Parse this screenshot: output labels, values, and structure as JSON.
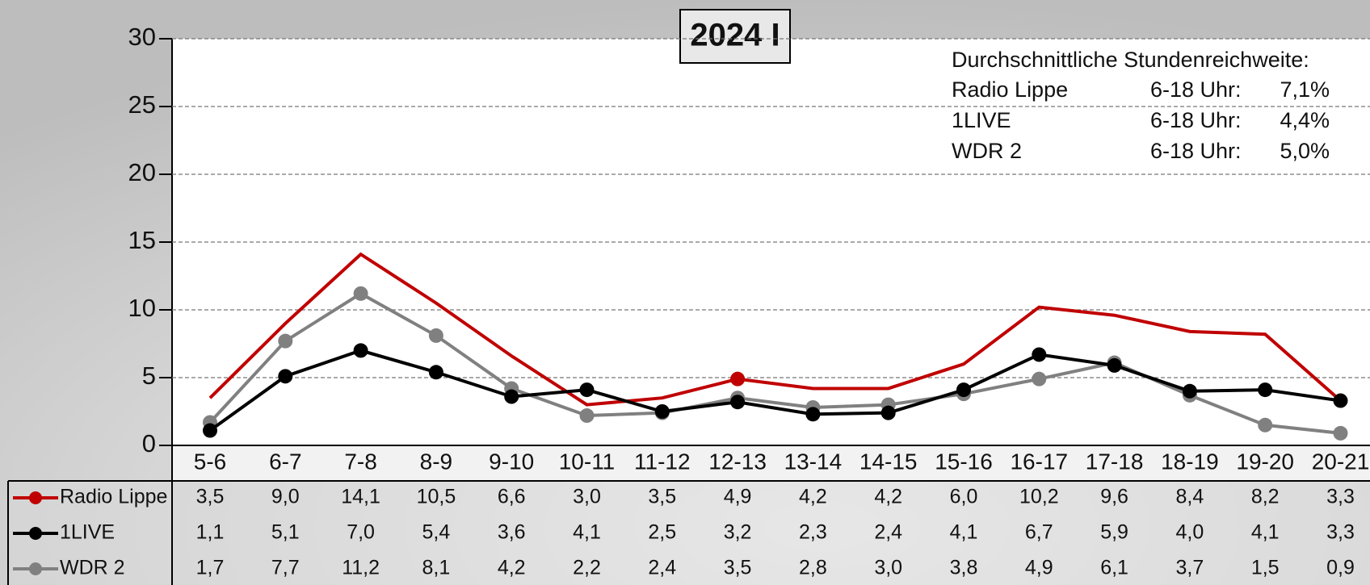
{
  "chart_data": {
    "type": "line",
    "title": "2024 I",
    "categories": [
      "5-6",
      "6-7",
      "7-8",
      "8-9",
      "9-10",
      "10-11",
      "11-12",
      "12-13",
      "13-14",
      "14-15",
      "15-16",
      "16-17",
      "17-18",
      "18-19",
      "19-20",
      "20-21"
    ],
    "series": [
      {
        "name": "Radio Lippe",
        "color": "#c00000",
        "markers": false,
        "highlight": 7,
        "values": [
          3.5,
          9.0,
          14.1,
          10.5,
          6.6,
          3.0,
          3.5,
          4.9,
          4.2,
          4.2,
          6.0,
          10.2,
          9.6,
          8.4,
          8.2,
          3.3
        ],
        "value_labels": [
          "3,5",
          "9,0",
          "14,1",
          "10,5",
          "6,6",
          "3,0",
          "3,5",
          "4,9",
          "4,2",
          "4,2",
          "6,0",
          "10,2",
          "9,6",
          "8,4",
          "8,2",
          "3,3"
        ]
      },
      {
        "name": "1LIVE",
        "color": "#000000",
        "markers": true,
        "values": [
          1.1,
          5.1,
          7.0,
          5.4,
          3.6,
          4.1,
          2.5,
          3.2,
          2.3,
          2.4,
          4.1,
          6.7,
          5.9,
          4.0,
          4.1,
          3.3
        ],
        "value_labels": [
          "1,1",
          "5,1",
          "7,0",
          "5,4",
          "3,6",
          "4,1",
          "2,5",
          "3,2",
          "2,3",
          "2,4",
          "4,1",
          "6,7",
          "5,9",
          "4,0",
          "4,1",
          "3,3"
        ]
      },
      {
        "name": "WDR 2",
        "color": "#808080",
        "markers": true,
        "values": [
          1.7,
          7.7,
          11.2,
          8.1,
          4.2,
          2.2,
          2.4,
          3.5,
          2.8,
          3.0,
          3.8,
          4.9,
          6.1,
          3.7,
          1.5,
          0.9
        ],
        "value_labels": [
          "1,7",
          "7,7",
          "11,2",
          "8,1",
          "4,2",
          "2,2",
          "2,4",
          "3,5",
          "2,8",
          "3,0",
          "3,8",
          "4,9",
          "6,1",
          "3,7",
          "1,5",
          "0,9"
        ]
      }
    ],
    "ylim": [
      0,
      30
    ],
    "yticks": [
      0,
      5,
      10,
      15,
      20,
      25,
      30
    ],
    "grid": true,
    "annotation": {
      "heading": "Durchschnittliche Stundenreichweite:",
      "rows": [
        [
          "Radio Lippe",
          "6-18 Uhr:",
          "7,1%"
        ],
        [
          "1LIVE",
          "6-18 Uhr:",
          "4,4%"
        ],
        [
          "WDR 2",
          "6-18 Uhr:",
          "5,0%"
        ]
      ]
    }
  }
}
